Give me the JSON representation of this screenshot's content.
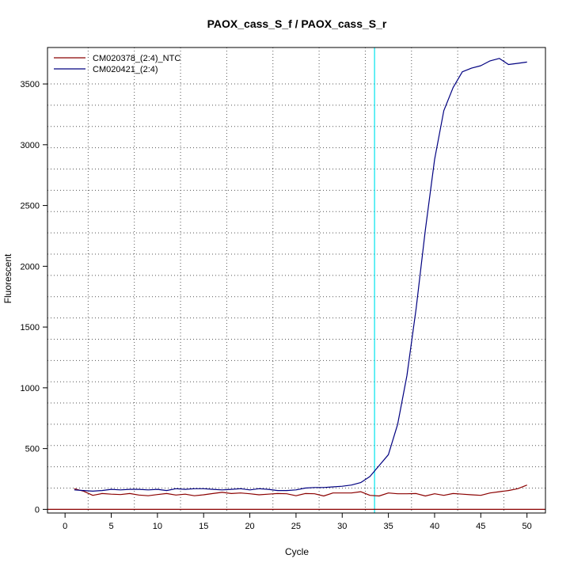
{
  "chart_data": {
    "type": "line",
    "title": "PAOX_cass_S_f / PAOX_cass_S_r",
    "xlabel": "Cycle",
    "ylabel": "Fluorescent",
    "xlim": [
      -1.9,
      52.0
    ],
    "ylim": [
      -30,
      3800
    ],
    "x_ticks": [
      0,
      5,
      10,
      15,
      20,
      25,
      30,
      35,
      40,
      45,
      50
    ],
    "y_ticks": [
      0,
      500,
      1000,
      1500,
      2000,
      2500,
      3000,
      3500
    ],
    "grid": true,
    "grid_x": [
      2.5,
      7.5,
      12.5,
      17.5,
      22.5,
      27.5,
      32.5,
      37.5,
      42.5,
      47.5
    ],
    "grid_y": [
      175,
      350,
      525,
      700,
      875,
      1050,
      1225,
      1400,
      1575,
      1750,
      1925,
      2100,
      2275,
      2450,
      2625,
      2800,
      2975,
      3150,
      3325,
      3500
    ],
    "threshold_cycle": 33.5,
    "threshold_color": "#00e5ee",
    "baseline_y": 0,
    "baseline_color": "#8b0000",
    "legend_position": "top-left",
    "x": [
      1,
      2,
      3,
      4,
      5,
      6,
      7,
      8,
      9,
      10,
      11,
      12,
      13,
      14,
      15,
      16,
      17,
      18,
      19,
      20,
      21,
      22,
      23,
      24,
      25,
      26,
      27,
      28,
      29,
      30,
      31,
      32,
      33,
      34,
      35,
      36,
      37,
      38,
      39,
      40,
      41,
      42,
      43,
      44,
      45,
      46,
      47,
      48,
      49,
      50
    ],
    "series": [
      {
        "name": "CM020378_(2:4)_NTC",
        "color": "#8b0000",
        "values": [
          170,
          150,
          115,
          130,
          125,
          122,
          130,
          118,
          112,
          122,
          130,
          118,
          125,
          112,
          120,
          130,
          140,
          130,
          135,
          128,
          120,
          125,
          130,
          128,
          112,
          130,
          128,
          110,
          135,
          135,
          135,
          145,
          115,
          110,
          135,
          128,
          128,
          130,
          110,
          128,
          115,
          130,
          125,
          120,
          115,
          135,
          145,
          155,
          170,
          200
        ]
      },
      {
        "name": "CM020421_(2:4)",
        "color": "#000080",
        "values": [
          160,
          155,
          150,
          155,
          165,
          160,
          165,
          165,
          160,
          165,
          155,
          170,
          165,
          170,
          170,
          165,
          160,
          165,
          170,
          160,
          170,
          165,
          155,
          155,
          160,
          175,
          180,
          180,
          185,
          190,
          200,
          220,
          270,
          360,
          450,
          700,
          1100,
          1650,
          2300,
          2880,
          3280,
          3470,
          3600,
          3630,
          3650,
          3690,
          3710,
          3660,
          3670,
          3680
        ]
      }
    ]
  }
}
